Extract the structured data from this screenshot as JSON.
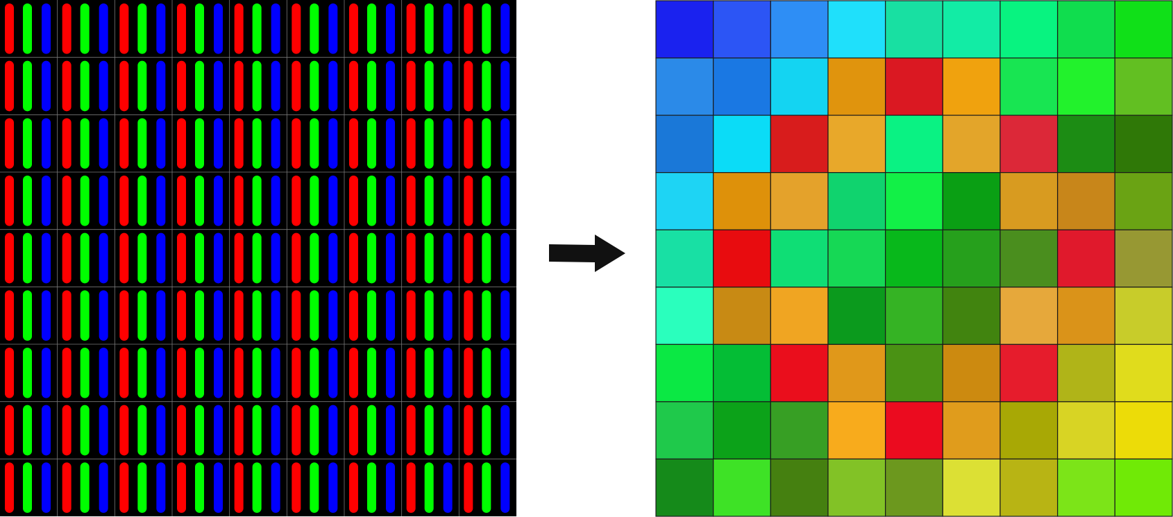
{
  "subpixel_grid": {
    "rows": 9,
    "cols": 9,
    "background": "#000000",
    "divider_color": "#7a7a7a",
    "subpixel_colors": [
      "#ff0000",
      "#00ff00",
      "#0000ff"
    ]
  },
  "arrow": {
    "color": "#111111",
    "direction": "right"
  },
  "color_grid": {
    "rows": 9,
    "cols": 9,
    "border_color": "#1a1a1a",
    "cells": [
      [
        "#1a22ef",
        "#2c55f5",
        "#2e8ef5",
        "#1fe0fb",
        "#18e0a2",
        "#12eca5",
        "#08f380",
        "#10dd4e",
        "#10e018"
      ],
      [
        "#2b8ae8",
        "#1a78e3",
        "#14d4f2",
        "#e0940d",
        "#da1822",
        "#f0a20e",
        "#18e552",
        "#22f22c",
        "#62bf22"
      ],
      [
        "#1a78d8",
        "#0bdcf7",
        "#d81c1c",
        "#e8a82a",
        "#0af283",
        "#e3a52a",
        "#dc2838",
        "#1c8c14",
        "#2f7807"
      ],
      [
        "#1ed4f4",
        "#de910a",
        "#e4a22b",
        "#10d36e",
        "#12f047",
        "#0a9f14",
        "#d89b20",
        "#c8861a",
        "#6aa314"
      ],
      [
        "#18e0a4",
        "#e80c0f",
        "#0fde75",
        "#16d855",
        "#08b81b",
        "#26a01c",
        "#4a8e1e",
        "#e0192c",
        "#979833"
      ],
      [
        "#2affbd",
        "#c88a14",
        "#f0a522",
        "#0b9a1d",
        "#35b324",
        "#41840f",
        "#e6a83b",
        "#da9319",
        "#c8cc2a"
      ],
      [
        "#0be844",
        "#04bd35",
        "#ea0e1c",
        "#e0981a",
        "#4a9214",
        "#cc8a10",
        "#e61c2c",
        "#b0b418",
        "#e0dc1c"
      ],
      [
        "#1fc94b",
        "#0ca219",
        "#379f24",
        "#f8ab1c",
        "#eb0b1f",
        "#e09c1c",
        "#a8a805",
        "#d8d424",
        "#ecdc08"
      ],
      [
        "#158a1a",
        "#3ee226",
        "#458010",
        "#82c226",
        "#6c981e",
        "#dce034",
        "#b8b414",
        "#7ce418",
        "#70ea06"
      ]
    ]
  }
}
